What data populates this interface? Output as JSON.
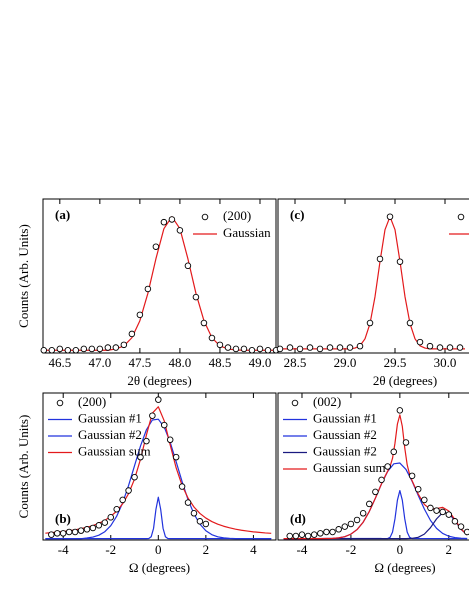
{
  "chart_data": [
    {
      "type": "line",
      "panel_label": "(a)",
      "label_corner": "upper left",
      "xlabel": "2θ (degrees)",
      "ylabel": "Counts (Arb. Units)",
      "xlim": [
        46.29,
        49.2
      ],
      "ylim": [
        0,
        1.13
      ],
      "xticks": [
        46.5,
        {
          "value": 47,
          "label": "47.0"
        },
        47.5,
        {
          "value": 48,
          "label": "48.0"
        },
        48.5,
        {
          "value": 49,
          "label": "49.0"
        }
      ],
      "legend": "upper right",
      "series": [
        {
          "name": "(200)",
          "style": "markers",
          "color": "#000000",
          "x": [
            46.3,
            46.4,
            46.5,
            46.6,
            46.7,
            46.8,
            46.9,
            47.0,
            47.1,
            47.2,
            47.3,
            47.4,
            47.5,
            47.6,
            47.7,
            47.8,
            47.9,
            48.0,
            48.1,
            48.2,
            48.3,
            48.4,
            48.5,
            48.6,
            48.7,
            48.8,
            48.9,
            49.0,
            49.1,
            49.2
          ],
          "values": [
            0.02,
            0.02,
            0.03,
            0.02,
            0.02,
            0.03,
            0.03,
            0.03,
            0.04,
            0.04,
            0.06,
            0.14,
            0.28,
            0.47,
            0.78,
            0.96,
            0.98,
            0.9,
            0.64,
            0.41,
            0.22,
            0.11,
            0.06,
            0.04,
            0.03,
            0.03,
            0.02,
            0.03,
            0.02,
            0.02
          ]
        },
        {
          "name": "Gaussian",
          "style": "line",
          "color": "#e31a1c",
          "x": [
            46.3,
            46.4,
            46.5,
            46.6,
            46.7,
            46.8,
            46.9,
            47.0,
            47.1,
            47.2,
            47.3,
            47.4,
            47.5,
            47.6,
            47.7,
            47.8,
            47.9,
            48.0,
            48.1,
            48.2,
            48.3,
            48.4,
            48.5,
            48.6,
            48.7,
            48.8,
            48.9,
            49.0,
            49.1,
            49.2
          ],
          "values": [
            0.02,
            0.02,
            0.02,
            0.02,
            0.02,
            0.02,
            0.02,
            0.02,
            0.02,
            0.03,
            0.052,
            0.112,
            0.237,
            0.438,
            0.691,
            0.912,
            1.0,
            0.912,
            0.691,
            0.438,
            0.237,
            0.112,
            0.052,
            0.03,
            0.022,
            0.02,
            0.02,
            0.02,
            0.02,
            0.02
          ]
        }
      ]
    },
    {
      "type": "line",
      "panel_label": "(c)",
      "label_corner": "upper left",
      "xlabel": "2θ (degrees)",
      "xlim": [
        28.33,
        30.87
      ],
      "ylim": [
        0,
        1.13
      ],
      "xticks": [
        28.5,
        {
          "value": 29,
          "label": "29.0"
        },
        29.5,
        {
          "value": 30,
          "label": "30.0"
        }
      ],
      "legend": "upper right",
      "series": [
        {
          "style": "markers",
          "color": "#000000",
          "x": [
            28.35,
            28.45,
            28.55,
            28.65,
            28.75,
            28.85,
            28.95,
            29.05,
            29.15,
            29.25,
            29.35,
            29.45,
            29.55,
            29.65,
            29.75,
            29.85,
            29.95,
            30.05,
            30.15
          ],
          "values": [
            0.03,
            0.04,
            0.03,
            0.04,
            0.03,
            0.04,
            0.04,
            0.04,
            0.05,
            0.22,
            0.69,
            1.0,
            0.67,
            0.22,
            0.08,
            0.05,
            0.04,
            0.04,
            0.04
          ]
        },
        {
          "style": "line",
          "color": "#e31a1c",
          "x": [
            28.35,
            28.4,
            28.45,
            28.5,
            28.55,
            28.6,
            28.65,
            28.7,
            28.75,
            28.8,
            28.85,
            28.9,
            28.95,
            29.0,
            29.05,
            29.1,
            29.15,
            29.2,
            29.25,
            29.3,
            29.35,
            29.4,
            29.45,
            29.5,
            29.55,
            29.6,
            29.65,
            29.7,
            29.75,
            29.8,
            29.85,
            29.9,
            29.95,
            30.0,
            30.05,
            30.1,
            30.15,
            30.2
          ],
          "values": [
            0.03,
            0.03,
            0.03,
            0.03,
            0.03,
            0.03,
            0.03,
            0.03,
            0.03,
            0.03,
            0.03,
            0.03,
            0.03,
            0.03,
            0.03,
            0.036,
            0.053,
            0.104,
            0.216,
            0.413,
            0.671,
            0.905,
            1.0,
            0.905,
            0.671,
            0.413,
            0.216,
            0.104,
            0.053,
            0.036,
            0.03,
            0.03,
            0.03,
            0.03,
            0.03,
            0.03,
            0.03,
            0.03
          ]
        }
      ]
    },
    {
      "type": "line",
      "panel_label": "(b)",
      "label_corner": "lower left",
      "xlabel": "Ω (degrees)",
      "ylabel": "Counts (Arb. Units)",
      "xlim": [
        -4.85,
        4.95
      ],
      "ylim": [
        0,
        1.1
      ],
      "xticks": [
        -4,
        -2,
        0,
        2,
        4
      ],
      "legend": "upper left",
      "series": [
        {
          "name": "(200)",
          "style": "markers",
          "color": "#000000",
          "x": [
            -4.5,
            -4.25,
            -4.0,
            -3.75,
            -3.5,
            -3.25,
            -3.0,
            -2.75,
            -2.5,
            -2.25,
            -2.0,
            -1.75,
            -1.5,
            -1.25,
            -1.0,
            -0.75,
            -0.5,
            -0.25,
            0,
            0.25,
            0.5,
            0.75,
            1.0,
            1.25,
            1.5,
            1.75,
            2.0
          ],
          "values": [
            0.04,
            0.05,
            0.05,
            0.06,
            0.06,
            0.07,
            0.08,
            0.09,
            0.11,
            0.13,
            0.17,
            0.23,
            0.3,
            0.37,
            0.47,
            0.62,
            0.74,
            0.93,
            1.05,
            0.86,
            0.75,
            0.62,
            0.4,
            0.28,
            0.2,
            0.14,
            0.12
          ]
        },
        {
          "name": "Gaussian #1",
          "style": "line",
          "color": "#2233dd",
          "x": [
            -4.75,
            -4.5,
            -4.25,
            -4.0,
            -3.75,
            -3.5,
            -3.25,
            -3.0,
            -2.75,
            -2.5,
            -2.25,
            -2.0,
            -1.75,
            -1.5,
            -1.25,
            -1.0,
            -0.75,
            -0.5,
            -0.25,
            0,
            0.25,
            0.5,
            0.75,
            1.0,
            1.25,
            1.5,
            1.75,
            2.0,
            2.25,
            2.5,
            2.75,
            3.0,
            3.25,
            3.5,
            3.75,
            4.0,
            4.25,
            4.5,
            4.75
          ],
          "values": [
            0.01,
            0.01,
            0.01,
            0.01,
            0.01,
            0.01,
            0.01,
            0.015,
            0.022,
            0.036,
            0.062,
            0.107,
            0.178,
            0.278,
            0.408,
            0.556,
            0.703,
            0.825,
            0.898,
            0.904,
            0.844,
            0.731,
            0.586,
            0.437,
            0.302,
            0.195,
            0.119,
            0.069,
            0.04,
            0.024,
            0.016,
            0.012,
            0.01,
            0.01,
            0.01,
            0.01,
            0.01,
            0.01,
            0.01
          ]
        },
        {
          "name": "Gaussian #2",
          "style": "line",
          "color": "#2233dd",
          "x": [
            -4.75,
            -0.5,
            -0.4,
            -0.3,
            -0.2,
            -0.1,
            0,
            0.1,
            0.2,
            0.3,
            0.4,
            0.5,
            4.75
          ],
          "values": [
            0.01,
            0.01,
            0.011,
            0.024,
            0.087,
            0.229,
            0.32,
            0.229,
            0.087,
            0.024,
            0.011,
            0.01,
            0.01
          ]
        },
        {
          "name": "Gaussian sum",
          "style": "line",
          "color": "#e31a1c",
          "x": [
            -4.75,
            -4.5,
            -4.25,
            -4.0,
            -3.75,
            -3.5,
            -3.25,
            -3.0,
            -2.75,
            -2.5,
            -2.25,
            -2.0,
            -1.75,
            -1.5,
            -1.25,
            -1.0,
            -0.75,
            -0.5,
            -0.25,
            0,
            0.25,
            0.5,
            0.75,
            1.0,
            1.25,
            1.5,
            1.75,
            2.0,
            2.25,
            2.5,
            2.75,
            3.0,
            3.25,
            3.5,
            3.75,
            4.0,
            4.25,
            4.5,
            4.75
          ],
          "values": [
            0.051,
            0.055,
            0.059,
            0.063,
            0.069,
            0.076,
            0.085,
            0.095,
            0.108,
            0.125,
            0.147,
            0.177,
            0.216,
            0.271,
            0.347,
            0.456,
            0.604,
            0.786,
            0.949,
            0.997,
            0.891,
            0.711,
            0.54,
            0.408,
            0.314,
            0.247,
            0.199,
            0.164,
            0.138,
            0.118,
            0.103,
            0.091,
            0.081,
            0.073,
            0.067,
            0.061,
            0.057,
            0.053,
            0.05
          ]
        }
      ]
    },
    {
      "type": "line",
      "panel_label": "(d)",
      "label_corner": "lower left",
      "xlabel": "Ω (degrees)",
      "xlim": [
        -4.98,
        5.4
      ],
      "ylim": [
        0,
        1.1
      ],
      "xticks": [
        -4,
        -2,
        0,
        2
      ],
      "legend": "upper left",
      "series": [
        {
          "name": "(002)",
          "style": "markers",
          "color": "#000000",
          "x": [
            -4.5,
            -4.25,
            -4.0,
            -3.75,
            -3.5,
            -3.25,
            -3.0,
            -2.75,
            -2.5,
            -2.25,
            -2.0,
            -1.75,
            -1.5,
            -1.25,
            -1.0,
            -0.75,
            -0.5,
            -0.25,
            0,
            0.25,
            0.5,
            0.75,
            1.0,
            1.25,
            1.5,
            1.75,
            2.0,
            2.25,
            2.5,
            2.75
          ],
          "values": [
            0.03,
            0.03,
            0.04,
            0.03,
            0.04,
            0.05,
            0.06,
            0.06,
            0.08,
            0.1,
            0.12,
            0.15,
            0.2,
            0.27,
            0.36,
            0.45,
            0.55,
            0.66,
            0.97,
            0.73,
            0.48,
            0.38,
            0.3,
            0.24,
            0.22,
            0.21,
            0.19,
            0.14,
            0.1,
            0.06
          ]
        },
        {
          "name": "Gaussian #1",
          "style": "line",
          "color": "#2233dd",
          "x": [
            -4.75,
            -4.5,
            -4.25,
            -4.0,
            -3.75,
            -3.5,
            -3.25,
            -3.0,
            -2.75,
            -2.5,
            -2.25,
            -2.0,
            -1.75,
            -1.5,
            -1.25,
            -1.0,
            -0.75,
            -0.5,
            -0.25,
            0,
            0.25,
            0.5,
            0.75,
            1.0,
            1.25,
            1.5,
            1.75,
            2.0,
            2.25,
            2.5,
            2.75
          ],
          "values": [
            0.01,
            0.01,
            0.01,
            0.01,
            0.01,
            0.01,
            0.01,
            0.011,
            0.012,
            0.016,
            0.025,
            0.044,
            0.078,
            0.133,
            0.213,
            0.313,
            0.42,
            0.513,
            0.57,
            0.576,
            0.528,
            0.44,
            0.334,
            0.232,
            0.147,
            0.087,
            0.049,
            0.028,
            0.018,
            0.013,
            0.011
          ]
        },
        {
          "name": "Gaussian #2",
          "style": "line",
          "color": "#2233dd",
          "x": [
            -4.75,
            -0.5,
            -0.4,
            -0.3,
            -0.2,
            -0.1,
            0,
            0.1,
            0.2,
            0.3,
            0.4,
            0.5,
            2.75
          ],
          "values": [
            0.01,
            0.011,
            0.02,
            0.059,
            0.158,
            0.298,
            0.37,
            0.298,
            0.158,
            0.059,
            0.02,
            0.011,
            0.01
          ]
        },
        {
          "name": "Gaussian #2",
          "style": "line",
          "color": "#1a1a80",
          "x": [
            -4.75,
            -4.5,
            -4.25,
            -4.0,
            -3.75,
            -3.5,
            -3.25,
            -3.0,
            -2.75,
            -2.5,
            -2.25,
            -2.0,
            -1.75,
            -1.5,
            -1.25,
            -1.0,
            -0.75,
            -0.5,
            -0.25,
            0,
            0.25,
            0.5,
            0.75,
            1.0,
            1.25,
            1.5,
            1.75,
            2.0,
            2.25,
            2.5,
            2.75
          ],
          "values": [
            0.01,
            0.01,
            0.01,
            0.01,
            0.01,
            0.01,
            0.01,
            0.01,
            0.01,
            0.01,
            0.01,
            0.01,
            0.01,
            0.01,
            0.01,
            0.01,
            0.01,
            0.01,
            0.01,
            0.01,
            0.01,
            0.012,
            0.02,
            0.044,
            0.092,
            0.158,
            0.205,
            0.199,
            0.145,
            0.08,
            0.037
          ]
        },
        {
          "name": "Gaussian sum",
          "style": "line",
          "color": "#e31a1c",
          "x": [
            -4.75,
            -4.5,
            -4.25,
            -4.0,
            -3.75,
            -3.5,
            -3.25,
            -3.0,
            -2.75,
            -2.5,
            -2.25,
            -2.0,
            -1.75,
            -1.5,
            -1.25,
            -1.0,
            -0.75,
            -0.6,
            -0.5,
            -0.4,
            -0.3,
            -0.2,
            -0.1,
            0,
            0.1,
            0.2,
            0.3,
            0.4,
            0.5,
            0.6,
            0.75,
            1.0,
            1.25,
            1.5,
            1.75,
            2.0,
            2.25,
            2.5,
            2.75
          ],
          "values": [
            0.01,
            0.01,
            0.01,
            0.01,
            0.01,
            0.01,
            0.01,
            0.011,
            0.012,
            0.016,
            0.025,
            0.044,
            0.078,
            0.133,
            0.213,
            0.313,
            0.42,
            0.479,
            0.514,
            0.551,
            0.611,
            0.724,
            0.868,
            0.936,
            0.85,
            0.689,
            0.562,
            0.489,
            0.443,
            0.403,
            0.344,
            0.266,
            0.229,
            0.235,
            0.244,
            0.217,
            0.153,
            0.083,
            0.038
          ]
        }
      ]
    }
  ]
}
